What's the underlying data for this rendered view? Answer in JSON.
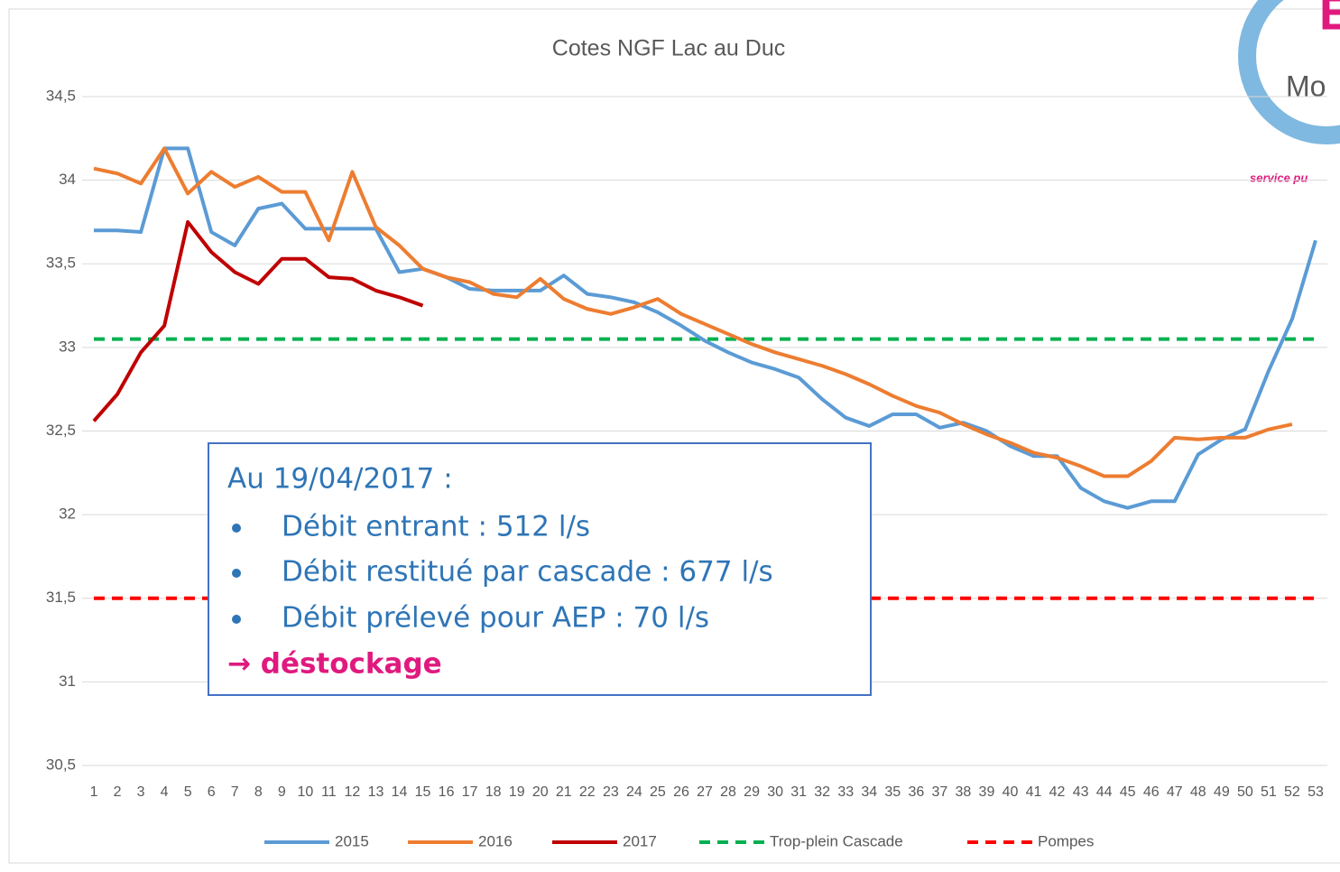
{
  "chart_data": {
    "type": "line",
    "title": "Cotes NGF Lac au Duc",
    "categories": [
      "1",
      "2",
      "3",
      "4",
      "5",
      "6",
      "7",
      "8",
      "9",
      "10",
      "11",
      "12",
      "13",
      "14",
      "15",
      "16",
      "17",
      "18",
      "19",
      "20",
      "21",
      "22",
      "23",
      "24",
      "25",
      "26",
      "27",
      "28",
      "29",
      "30",
      "31",
      "32",
      "33",
      "34",
      "35",
      "36",
      "37",
      "38",
      "39",
      "40",
      "41",
      "42",
      "43",
      "44",
      "45",
      "46",
      "47",
      "48",
      "49",
      "50",
      "51",
      "52",
      "53"
    ],
    "ylim": [
      30.5,
      34.5
    ],
    "yticks": [
      {
        "value": 30.5,
        "label": "30,5"
      },
      31,
      {
        "value": 31.5,
        "label": "31,5"
      },
      32,
      {
        "value": 32.5,
        "label": "32,5"
      },
      33,
      {
        "value": 33.5,
        "label": "33,5"
      },
      34,
      {
        "value": 34.5,
        "label": "34,5"
      }
    ],
    "grid": true,
    "legend": "bottom",
    "series": [
      {
        "name": "2015",
        "color": "#5b9bd5",
        "style": "solid",
        "values": [
          33.7,
          33.7,
          33.69,
          34.19,
          34.19,
          33.69,
          33.61,
          33.83,
          33.86,
          33.71,
          33.71,
          33.71,
          33.71,
          33.45,
          33.47,
          33.42,
          33.35,
          33.34,
          33.34,
          33.34,
          33.43,
          33.32,
          33.3,
          33.27,
          33.21,
          33.13,
          33.04,
          32.97,
          32.91,
          32.87,
          32.82,
          32.69,
          32.58,
          32.53,
          32.6,
          32.6,
          32.52,
          32.55,
          32.5,
          32.41,
          32.35,
          32.35,
          32.16,
          32.08,
          32.04,
          32.08,
          32.08,
          32.36,
          32.45,
          32.51,
          32.86,
          33.17,
          33.64
        ]
      },
      {
        "name": "2016",
        "color": "#ed7d31",
        "style": "solid",
        "values": [
          34.07,
          34.04,
          33.98,
          34.19,
          33.92,
          34.05,
          33.96,
          34.02,
          33.93,
          33.93,
          33.64,
          34.05,
          33.72,
          33.61,
          33.47,
          33.42,
          33.39,
          33.32,
          33.3,
          33.41,
          33.29,
          33.23,
          33.2,
          33.24,
          33.29,
          33.2,
          33.14,
          33.08,
          33.02,
          32.97,
          32.93,
          32.89,
          32.84,
          32.78,
          32.71,
          32.65,
          32.61,
          32.54,
          32.48,
          32.43,
          32.37,
          32.34,
          32.29,
          32.23,
          32.23,
          32.32,
          32.46,
          32.45,
          32.46,
          32.46,
          32.51,
          32.54,
          null
        ]
      },
      {
        "name": "2017",
        "color": "#c00000",
        "style": "solid",
        "values": [
          32.56,
          32.72,
          32.97,
          33.13,
          33.75,
          33.57,
          33.45,
          33.38,
          33.53,
          33.53,
          33.42,
          33.41,
          33.34,
          33.3,
          33.25,
          null,
          null,
          null,
          null,
          null,
          null,
          null,
          null,
          null,
          null,
          null,
          null,
          null,
          null,
          null,
          null,
          null,
          null,
          null,
          null,
          null,
          null,
          null,
          null,
          null,
          null,
          null,
          null,
          null,
          null,
          null,
          null,
          null,
          null,
          null,
          null,
          null,
          null
        ]
      },
      {
        "name": "Trop-plein Cascade",
        "color": "#00b050",
        "style": "dashed",
        "values": [
          33.05,
          33.05,
          33.05,
          33.05,
          33.05,
          33.05,
          33.05,
          33.05,
          33.05,
          33.05,
          33.05,
          33.05,
          33.05,
          33.05,
          33.05,
          33.05,
          33.05,
          33.05,
          33.05,
          33.05,
          33.05,
          33.05,
          33.05,
          33.05,
          33.05,
          33.05,
          33.05,
          33.05,
          33.05,
          33.05,
          33.05,
          33.05,
          33.05,
          33.05,
          33.05,
          33.05,
          33.05,
          33.05,
          33.05,
          33.05,
          33.05,
          33.05,
          33.05,
          33.05,
          33.05,
          33.05,
          33.05,
          33.05,
          33.05,
          33.05,
          33.05,
          33.05,
          33.05
        ]
      },
      {
        "name": "Pompes",
        "color": "#ff0000",
        "style": "dashed",
        "values": [
          31.5,
          31.5,
          31.5,
          31.5,
          31.5,
          31.5,
          31.5,
          31.5,
          31.5,
          31.5,
          31.5,
          31.5,
          31.5,
          31.5,
          31.5,
          31.5,
          31.5,
          31.5,
          31.5,
          31.5,
          31.5,
          31.5,
          31.5,
          31.5,
          31.5,
          31.5,
          31.5,
          31.5,
          31.5,
          31.5,
          31.5,
          31.5,
          31.5,
          31.5,
          31.5,
          31.5,
          31.5,
          31.5,
          31.5,
          31.5,
          31.5,
          31.5,
          31.5,
          31.5,
          31.5,
          31.5,
          31.5,
          31.5,
          31.5,
          31.5,
          31.5,
          31.5,
          31.5
        ]
      }
    ],
    "annotation": {
      "heading": "Au 19/04/2017 :",
      "items": [
        "Débit entrant : 512 l/s",
        "Débit restitué par cascade : 677 l/s",
        "Débit prélevé pour AEP : 70 l/s"
      ],
      "conclusion": "→ déstockage"
    }
  },
  "logo": {
    "letter": "E",
    "text": "Mo",
    "tagline": "service pu"
  }
}
